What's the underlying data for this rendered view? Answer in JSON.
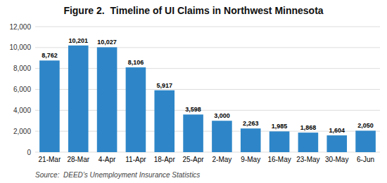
{
  "chart_data": {
    "type": "bar",
    "title": "Figure 2.  Timeline of UI Claims in Northwest Minnesota",
    "categories": [
      "21-Mar",
      "28-Mar",
      "4-Apr",
      "11-Apr",
      "18-Apr",
      "25-Apr",
      "2-May",
      "9-May",
      "16-May",
      "23-May",
      "30-May",
      "6-Jun"
    ],
    "values": [
      8762,
      10201,
      10027,
      8106,
      5917,
      3598,
      3000,
      2263,
      1985,
      1868,
      1604,
      2050
    ],
    "value_labels": [
      "8,762",
      "10,201",
      "10,027",
      "8,106",
      "5,917",
      "3,598",
      "3,000",
      "2,263",
      "1,985",
      "1,868",
      "1,604",
      "2,050"
    ],
    "data_labels": true,
    "color": "#2E86C8",
    "ylim": [
      0,
      12000
    ],
    "yticks": [
      0,
      {
        "value": 2000,
        "label": "2,000"
      },
      {
        "value": 4000,
        "label": "4,000"
      },
      {
        "value": 6000,
        "label": "6,000"
      },
      {
        "value": 8000,
        "label": "8,000"
      },
      {
        "value": 10000,
        "label": "10,000"
      },
      {
        "value": 12000,
        "label": "12,000"
      }
    ],
    "grid": true,
    "annotations": [
      "Source:  DEED’s Unemployment Insurance Statistics"
    ]
  }
}
